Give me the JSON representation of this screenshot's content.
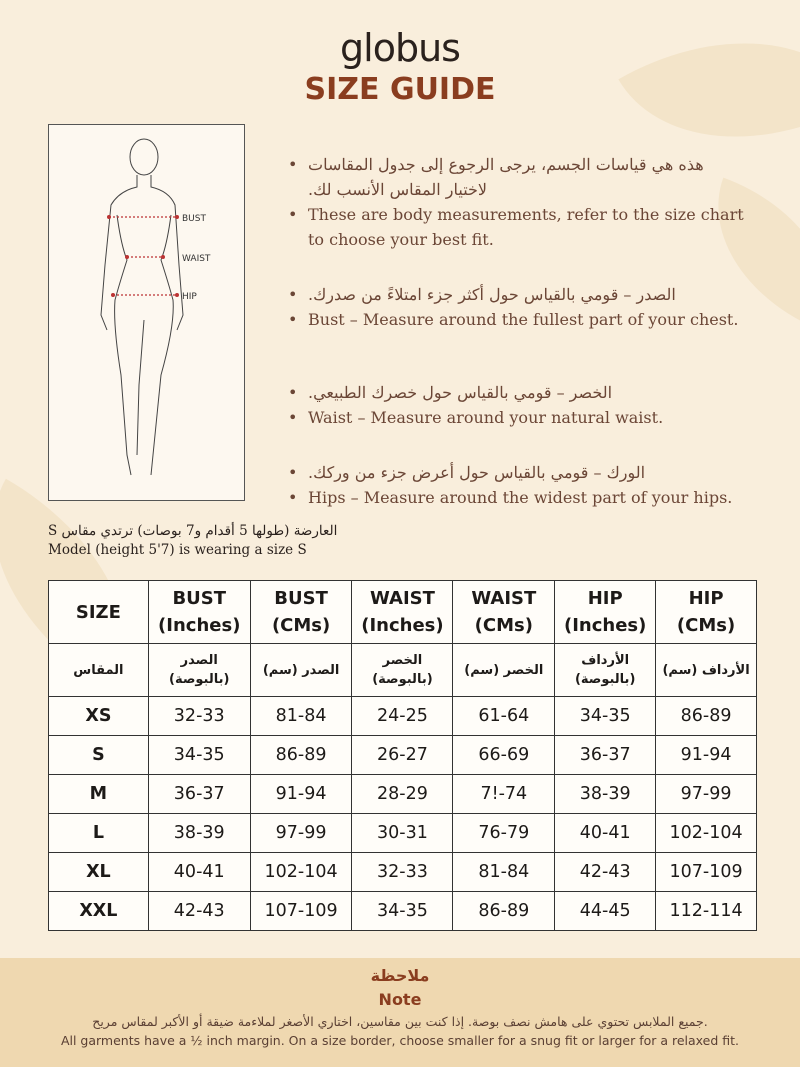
{
  "brand": "globus",
  "title": "SIZE GUIDE",
  "figure": {
    "labels": [
      "BUST",
      "WAIST",
      "HIP"
    ]
  },
  "bullets": [
    {
      "ar": "هذه هي قياسات الجسم، يرجى الرجوع إلى جدول المقاسات لاختيار المقاس الأنسب لك.",
      "en": "These are body measurements, refer to the size chart to choose your best fit."
    },
    {
      "ar": "الصدر – قومي بالقياس حول أكثر جزء امتلاءً من صدرك.",
      "en": "Bust – Measure around the fullest part of your chest."
    },
    {
      "ar": "الخصر – قومي بالقياس حول خصرك الطبيعي.",
      "en": "Waist – Measure around your natural waist."
    },
    {
      "ar": "الورك – قومي بالقياس حول أعرض جزء من وركك.",
      "en": "Hips – Measure around the widest part of your hips."
    }
  ],
  "model": {
    "ar": "العارضة (طولها 5 أقدام و7 بوصات) ترتدي مقاس S",
    "en": "Model (height 5'7) is wearing a size S"
  },
  "table": {
    "headers": [
      [
        "SIZE",
        ""
      ],
      [
        "BUST",
        "(Inches)"
      ],
      [
        "BUST",
        "(CMs)"
      ],
      [
        "WAIST",
        "(Inches)"
      ],
      [
        "WAIST",
        "(CMs)"
      ],
      [
        "HIP",
        "(Inches)"
      ],
      [
        "HIP",
        "(CMs)"
      ]
    ],
    "headers_ar": [
      [
        "المقاس",
        ""
      ],
      [
        "الصدر",
        "(بالبوصة)"
      ],
      [
        "الصدر (سم)",
        ""
      ],
      [
        "الخصر",
        "(بالبوصة)"
      ],
      [
        "الخصر (سم)",
        ""
      ],
      [
        "الأرداف",
        "(بالبوصة)"
      ],
      [
        "الأرداف (سم)",
        ""
      ]
    ],
    "rows": [
      [
        "XS",
        "32-33",
        "81-84",
        "24-25",
        "61-64",
        "34-35",
        "86-89"
      ],
      [
        "S",
        "34-35",
        "86-89",
        "26-27",
        "66-69",
        "36-37",
        "91-94"
      ],
      [
        "M",
        "36-37",
        "91-94",
        "28-29",
        "7!-74",
        "38-39",
        "97-99"
      ],
      [
        "L",
        "38-39",
        "97-99",
        "30-31",
        "76-79",
        "40-41",
        "102-104"
      ],
      [
        "XL",
        "40-41",
        "102-104",
        "32-33",
        "81-84",
        "42-43",
        "107-109"
      ],
      [
        "XXL",
        "42-43",
        "107-109",
        "34-35",
        "86-89",
        "44-45",
        "112-114"
      ]
    ]
  },
  "note": {
    "title_ar": "ملاحظة",
    "title_en": "Note",
    "text_ar": "جميع الملابس تحتوي على هامش نصف بوصة. إذا كنت بين مقاسين، اختاري الأصغر لملاءمة ضيقة أو الأكبر لمقاس مريح.",
    "text_en": "All garments have a ½ inch margin. On a size border, choose smaller for a snug fit or larger for a relaxed fit."
  },
  "colors": {
    "background": "#f9eedc",
    "accent": "#8a3d1f",
    "note_bg": "#efd8b0"
  }
}
